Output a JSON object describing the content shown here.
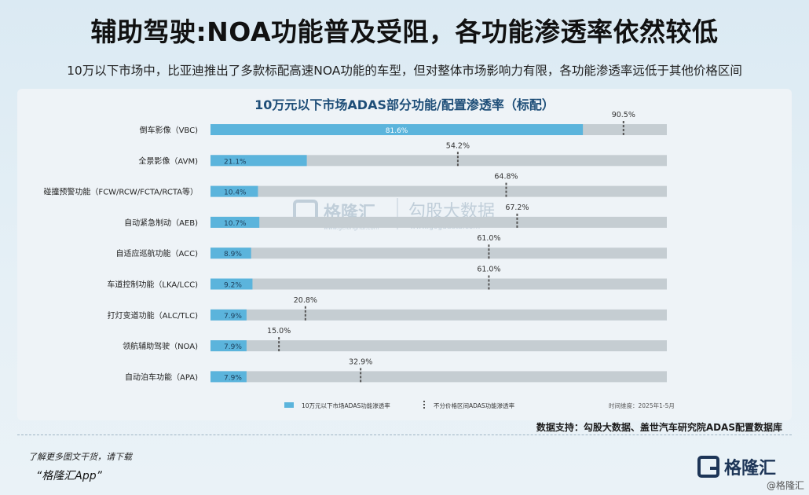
{
  "headline": "辅助驾驶:NOA功能普及受阻，各功能渗透率依然较低",
  "subline": "10万以下市场中，比亚迪推出了多款标配高速NOA功能的车型，但对整体市场影响力有限，各功能渗透率远低于其他价格区间",
  "source": "数据支持：勾股大数据、盖世汽车研究院ADAS配置数据库",
  "footer": {
    "more": "了解更多图文干货，请下载",
    "app": "“格隆汇App”",
    "brand": "格隆汇",
    "corner": "@格隆汇"
  },
  "watermark": {
    "brand": "格隆汇",
    "site1": "www.gelonghui.com",
    "name": "勾股大数据",
    "site2": "www.gogudata.com"
  },
  "colors": {
    "bar_sub10k": "#5bb4dc",
    "bar_track": "#c5cdd2",
    "marker": "#555555"
  },
  "chart_data": {
    "type": "bar",
    "orientation": "horizontal",
    "title": "10万元以下市场ADAS部分功能/配置渗透率（标配）",
    "categories": [
      "倒车影像（VBC)",
      "全景影像（AVM)",
      "碰撞预警功能（FCW/RCW/FCTA/RCTA等）",
      "自动紧急制动（AEB)",
      "自适应巡航功能（ACC)",
      "车道控制功能（LKA/LCC)",
      "打灯变道功能（ALC/TLC)",
      "领航辅助驾驶（NOA)",
      "自动泊车功能（APA)"
    ],
    "series": [
      {
        "name": "10万元以下市场ADAS功能渗透率",
        "values": [
          81.6,
          21.1,
          10.4,
          10.7,
          8.9,
          9.2,
          7.9,
          7.9,
          7.9
        ],
        "labels": [
          "81.6%",
          "21.1%",
          "10.4%",
          "10.7%",
          "8.9%",
          "9.2%",
          "7.9%",
          "7.9%",
          "7.9%"
        ]
      },
      {
        "name": "不分价格区间ADAS功能渗透率",
        "values": [
          90.5,
          54.2,
          64.8,
          67.2,
          61.0,
          61.0,
          20.8,
          15.0,
          32.9
        ],
        "labels": [
          "90.5%",
          "54.2%",
          "64.8%",
          "67.2%",
          "61.0%",
          "61.0%",
          "20.8%",
          "15.0%",
          "32.9%"
        ]
      }
    ],
    "xlim": [
      0,
      100
    ],
    "unit": "%",
    "note": "时间维度：2025年1-5月",
    "legend_position": "bottom"
  }
}
